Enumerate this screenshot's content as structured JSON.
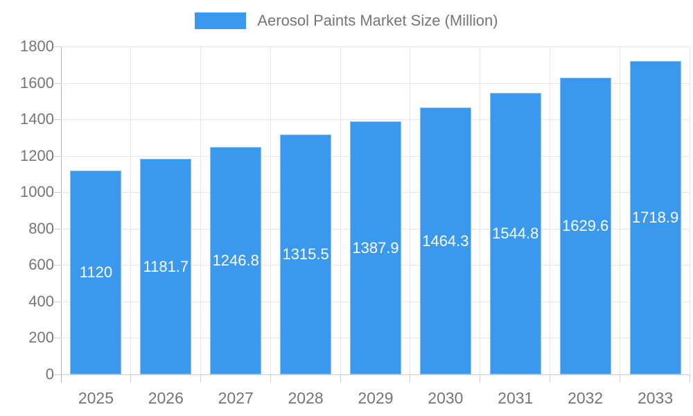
{
  "legend": {
    "label": "Aerosol Paints Market Size (Million)"
  },
  "chart_data": {
    "type": "bar",
    "title": "Aerosol Paints Market Size (Million)",
    "categories": [
      "2025",
      "2026",
      "2027",
      "2028",
      "2029",
      "2030",
      "2031",
      "2032",
      "2033"
    ],
    "values": [
      1120,
      1181.7,
      1246.8,
      1315.5,
      1387.9,
      1464.3,
      1544.8,
      1629.6,
      1718.9
    ],
    "bar_labels": [
      "1120",
      "1181.7",
      "1246.8",
      "1315.5",
      "1387.9",
      "1464.3",
      "1544.8",
      "1629.6",
      "1718.9"
    ],
    "xlabel": "",
    "ylabel": "",
    "ylim": [
      0,
      1800
    ],
    "ytick_step": 200,
    "ytick_labels": [
      "0",
      "200",
      "400",
      "600",
      "800",
      "1000",
      "1200",
      "1400",
      "1600",
      "1800"
    ],
    "grid": true,
    "legend_position": "top",
    "series_name": "Aerosol Paints Market Size (Million)"
  },
  "colors": {
    "bar_fill": "#3b99ed",
    "bar_stroke": "#8ec2f3",
    "bar_label_text": "#ffffff",
    "axis_text": "#757575",
    "gridline": "#e6e6e6",
    "baseline": "#cccccc",
    "axis_line": "#b3b3b3",
    "tick": "#cccccc",
    "background": "#ffffff"
  }
}
